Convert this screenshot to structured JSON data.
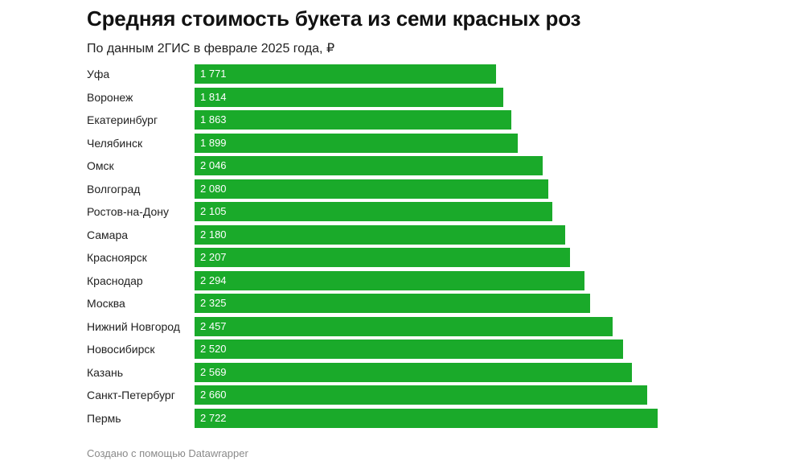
{
  "header": {
    "title": "Средняя стоимость букета из семи красных роз",
    "subtitle": "По данным 2ГИС в феврале 2025 года, ₽"
  },
  "footer": {
    "credit": "Создано с помощью Datawrapper"
  },
  "colors": {
    "bar": "#1aaa2a",
    "value_text": "#ffffff"
  },
  "chart_data": {
    "type": "bar",
    "orientation": "horizontal",
    "title": "Средняя стоимость букета из семи красных роз",
    "subtitle": "По данным 2ГИС в феврале 2025 года, ₽",
    "categories": [
      "Уфа",
      "Воронеж",
      "Екатеринбург",
      "Челябинск",
      "Омск",
      "Волгоград",
      "Ростов-на-Дону",
      "Самара",
      "Красноярск",
      "Краснодар",
      "Москва",
      "Нижний Новгород",
      "Новосибирск",
      "Казань",
      "Санкт-Петербург",
      "Пермь"
    ],
    "values": [
      1771,
      1814,
      1863,
      1899,
      2046,
      2080,
      2105,
      2180,
      2207,
      2294,
      2325,
      2457,
      2520,
      2569,
      2660,
      2722
    ],
    "value_labels": [
      "1 771",
      "1 814",
      "1 863",
      "1 899",
      "2 046",
      "2 080",
      "2 105",
      "2 180",
      "2 207",
      "2 294",
      "2 325",
      "2 457",
      "2 520",
      "2 569",
      "2 660",
      "2 722"
    ],
    "xlim": [
      0,
      2722
    ],
    "grid": false,
    "legend": "none"
  }
}
